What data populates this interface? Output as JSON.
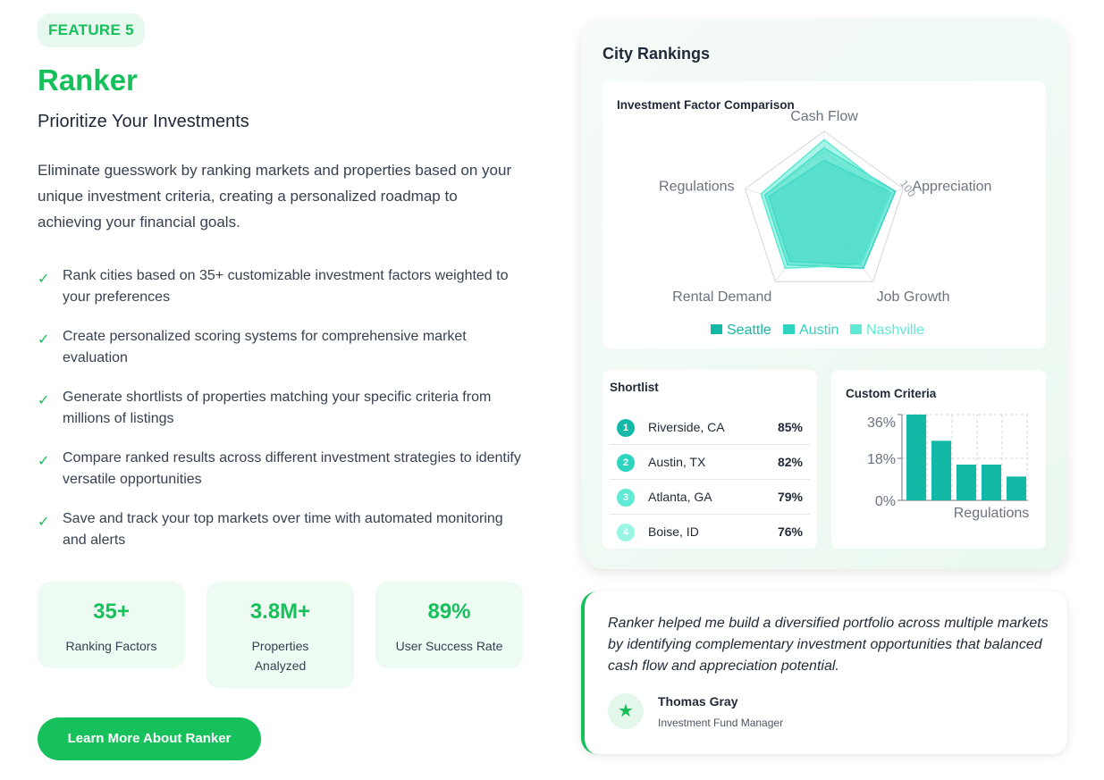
{
  "feature": {
    "badge": "FEATURE 5",
    "title": "Ranker",
    "subtitle": "Prioritize Your Investments",
    "description": "Eliminate guesswork by ranking markets and properties based on your unique investment criteria, creating a personalized roadmap to achieving your financial goals.",
    "check_icon": "checkmark-icon",
    "bullets": [
      "Rank cities based on 35+ customizable investment factors weighted to your preferences",
      "Create personalized scoring systems for comprehensive market evaluation",
      "Generate shortlists of properties matching your specific criteria from millions of listings",
      "Compare ranked results across different investment strategies to identify versatile opportunities",
      "Save and track your top markets over time with automated monitoring and alerts"
    ],
    "stats": [
      {
        "value": "35+",
        "label": "Ranking Factors"
      },
      {
        "value": "3.8M+",
        "label": "Properties Analyzed"
      },
      {
        "value": "89%",
        "label": "User Success Rate"
      }
    ],
    "cta_label": "Learn More About Ranker"
  },
  "colors": {
    "accent": "#16c15b",
    "seattle": "#14b8a6",
    "austin": "#2dd4bf",
    "nashville": "#5eead4"
  },
  "panel": {
    "title": "City Rankings",
    "radar": {
      "title": "Investment Factor Comparison",
      "scale_label": "100",
      "axes": [
        "Cash Flow",
        "Appreciation",
        "Job Growth",
        "Rental Demand",
        "Regulations"
      ],
      "max": 100,
      "series": [
        {
          "name": "Seattle",
          "values": [
            65,
            85,
            75,
            70,
            70
          ]
        },
        {
          "name": "Austin",
          "values": [
            80,
            90,
            80,
            75,
            75
          ]
        },
        {
          "name": "Nashville",
          "values": [
            90,
            85,
            75,
            80,
            80
          ]
        }
      ]
    },
    "shortlist": {
      "title": "Shortlist",
      "items": [
        {
          "rank": "1",
          "name": "Riverside, CA",
          "pct": "85%"
        },
        {
          "rank": "2",
          "name": "Austin, TX",
          "pct": "82%"
        },
        {
          "rank": "3",
          "name": "Atlanta, GA",
          "pct": "79%"
        },
        {
          "rank": "4",
          "name": "Boise, ID",
          "pct": "76%"
        }
      ]
    },
    "criteria": {
      "title": "Custom Criteria",
      "y_ticks": [
        "36%",
        "18%",
        "0%"
      ],
      "x_label": "Regulations",
      "values": [
        36,
        25,
        15,
        15,
        10
      ],
      "max": 36
    }
  },
  "testimonial": {
    "quote": "Ranker helped me build a diversified portfolio across multiple markets by identifying complementary investment opportunities that balanced cash flow and appreciation potential.",
    "avatar_icon": "star-icon",
    "name": "Thomas Gray",
    "role": "Investment Fund Manager"
  }
}
